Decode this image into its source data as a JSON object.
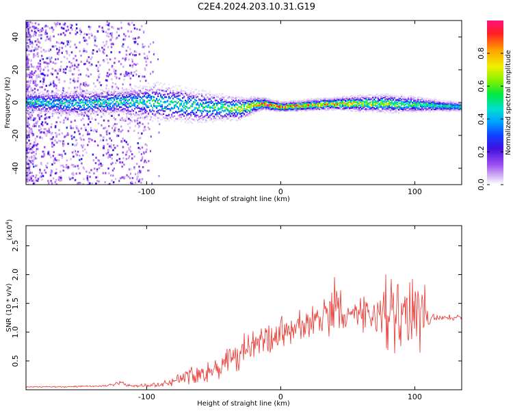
{
  "figure": {
    "title": "C2E4.2024.203.10.31.G19"
  },
  "chart_data": [
    {
      "type": "heatmap",
      "xlabel": "Height of straight line (km)",
      "ylabel": "Frequency (Hz)",
      "xlim": [
        -190,
        135
      ],
      "ylim": [
        -50,
        50
      ],
      "xticks": [
        -100,
        0,
        100
      ],
      "yticks": [
        -40,
        -20,
        0,
        20,
        40
      ],
      "colorbar": {
        "label": "Normalized spectral amplitude",
        "range": [
          0,
          1
        ],
        "ticks": [
          0.0,
          0.2,
          0.4,
          0.6,
          0.8
        ],
        "tick_labels": [
          "0.0",
          "0.2",
          "0.4",
          "0.6",
          "0.8"
        ]
      },
      "ridge": [
        {
          "x": -190,
          "f": 1,
          "spread": 3.0,
          "peak": 0.55
        },
        {
          "x": -150,
          "f": 0,
          "spread": 4.0,
          "peak": 0.5
        },
        {
          "x": -120,
          "f": 1,
          "spread": 4.0,
          "peak": 0.55
        },
        {
          "x": -95,
          "f": 1,
          "spread": 6.0,
          "peak": 0.55
        },
        {
          "x": -60,
          "f": -2,
          "spread": 5.0,
          "peak": 0.55
        },
        {
          "x": -30,
          "f": -3,
          "spread": 3.5,
          "peak": 0.7
        },
        {
          "x": -15,
          "f": 0,
          "spread": 2.0,
          "peak": 0.95
        },
        {
          "x": 0,
          "f": -2,
          "spread": 1.5,
          "peak": 0.95
        },
        {
          "x": 40,
          "f": 0,
          "spread": 2.0,
          "peak": 0.85
        },
        {
          "x": 80,
          "f": 0,
          "spread": 3.0,
          "peak": 0.7
        },
        {
          "x": 110,
          "f": -1,
          "spread": 2.0,
          "peak": 0.6
        },
        {
          "x": 135,
          "f": -2,
          "spread": 1.5,
          "peak": 0.55
        }
      ]
    },
    {
      "type": "line",
      "xlabel": "Height of straight line (km)",
      "ylabel": "SNR (10 * v/v)",
      "y_multiplier": "(x10",
      "y_multiplier_exp": "4",
      "y_multiplier_close": ")",
      "xlim": [
        -190,
        135
      ],
      "ylim": [
        0,
        2.85
      ],
      "xticks": [
        -100,
        0,
        100
      ],
      "yticks": [
        0.5,
        1.0,
        1.5,
        2.0,
        2.5
      ],
      "ytick_labels": [
        "0.5",
        "1.0",
        "1.5",
        "2.0",
        "2.5"
      ],
      "color": "#e8302a",
      "series": [
        {
          "x": [
            -190,
            -160,
            -130,
            -120,
            -110,
            -100,
            -90,
            -80,
            -70,
            -60,
            -50,
            -40,
            -30,
            -20,
            -10,
            0,
            10,
            20,
            30,
            35,
            40,
            50,
            60,
            70,
            75,
            80,
            85,
            90,
            100,
            105,
            110,
            115,
            120,
            130,
            135
          ],
          "y": [
            0.05,
            0.05,
            0.07,
            0.12,
            0.06,
            0.08,
            0.1,
            0.15,
            0.25,
            0.3,
            0.35,
            0.5,
            0.6,
            0.75,
            0.85,
            1.0,
            1.05,
            1.15,
            1.25,
            1.3,
            1.35,
            1.3,
            1.3,
            1.3,
            1.3,
            1.3,
            1.35,
            1.3,
            1.3,
            1.3,
            1.3,
            1.25,
            1.25,
            1.25,
            1.25
          ],
          "noise": [
            0.01,
            0.01,
            0.02,
            0.05,
            0.02,
            0.03,
            0.05,
            0.08,
            0.15,
            0.18,
            0.2,
            0.25,
            0.28,
            0.3,
            0.3,
            0.3,
            0.3,
            0.3,
            0.3,
            0.35,
            0.6,
            0.35,
            0.3,
            0.25,
            0.6,
            0.9,
            0.8,
            0.8,
            0.7,
            0.7,
            0.2,
            0.05,
            0.05,
            0.05,
            0.05
          ]
        }
      ]
    }
  ]
}
